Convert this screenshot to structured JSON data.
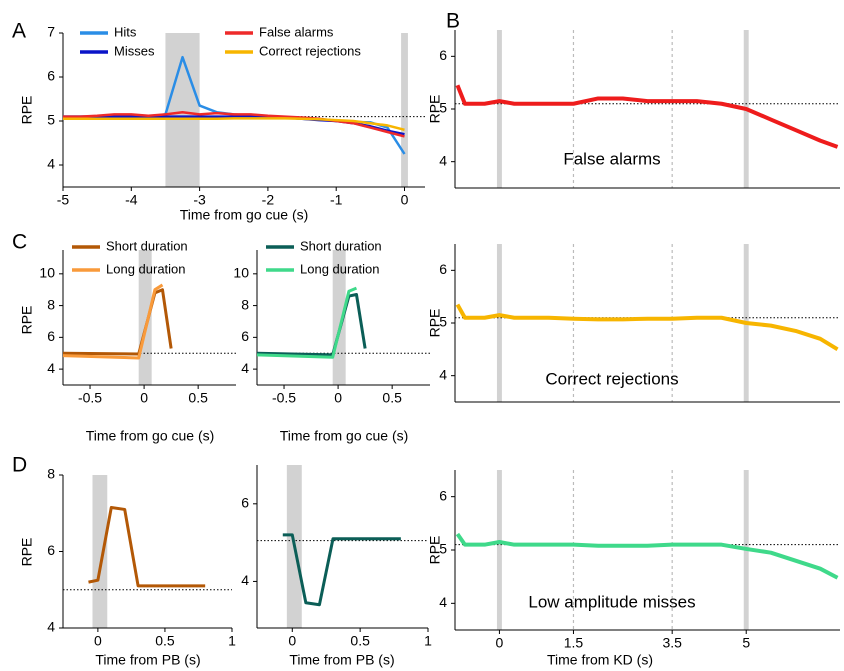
{
  "chart_data": [
    {
      "type": "line",
      "panel": "A",
      "xlabel": "Time from go cue (s)",
      "ylabel": "RPE",
      "x": [
        -5,
        -4.75,
        -4.5,
        -4.25,
        -4,
        -3.75,
        -3.5,
        -3.25,
        -3,
        -2.75,
        -2.5,
        -2.25,
        -2,
        -1.75,
        -1.5,
        -1.25,
        -1,
        -0.75,
        -0.5,
        -0.25,
        0
      ],
      "series": [
        {
          "name": "Hits",
          "color": "#2a8de6",
          "values": [
            5.1,
            5.1,
            5.1,
            5.1,
            5.1,
            5.1,
            5.15,
            6.45,
            5.35,
            5.2,
            5.15,
            5.12,
            5.1,
            5.08,
            5.05,
            5.03,
            5.0,
            4.98,
            4.97,
            4.85,
            4.25
          ]
        },
        {
          "name": "Misses",
          "color": "#0a14c8",
          "values": [
            5.1,
            5.1,
            5.1,
            5.1,
            5.1,
            5.1,
            5.1,
            5.1,
            5.1,
            5.1,
            5.1,
            5.1,
            5.1,
            5.08,
            5.05,
            5.02,
            5.0,
            4.95,
            4.88,
            4.78,
            4.7
          ]
        },
        {
          "name": "False alarms",
          "color": "#ee2a2a",
          "values": [
            5.1,
            5.1,
            5.12,
            5.15,
            5.15,
            5.12,
            5.15,
            5.2,
            5.15,
            5.18,
            5.15,
            5.15,
            5.12,
            5.1,
            5.08,
            5.05,
            5.0,
            4.95,
            4.85,
            4.75,
            4.65
          ]
        },
        {
          "name": "Correct rejections",
          "color": "#f7b500",
          "values": [
            5.05,
            5.05,
            5.05,
            5.05,
            5.05,
            5.05,
            5.05,
            5.05,
            5.05,
            5.05,
            5.06,
            5.06,
            5.06,
            5.06,
            5.05,
            5.04,
            5.02,
            5.0,
            4.95,
            4.9,
            4.8
          ]
        }
      ],
      "xlim": [
        -5,
        0.3
      ],
      "ylim": [
        3.5,
        7
      ],
      "xticks": [
        -5,
        -4,
        -3,
        -2,
        -1,
        0
      ],
      "yticks": [
        4,
        5,
        6,
        7
      ],
      "shaded": [
        [
          -3.5,
          -3
        ],
        [
          -0.05,
          0.05
        ]
      ],
      "reference_y": 5.1
    },
    {
      "type": "line",
      "panel": "B",
      "ylabel": "RPE",
      "annotation": "False alarms",
      "x": [
        -0.85,
        -0.7,
        -0.3,
        0,
        0.3,
        1,
        1.5,
        2,
        2.5,
        3,
        3.5,
        4,
        4.5,
        5,
        5.5,
        6,
        6.5,
        6.85
      ],
      "series": [
        {
          "color": "#ee1c1c",
          "values": [
            5.45,
            5.1,
            5.1,
            5.15,
            5.1,
            5.1,
            5.1,
            5.2,
            5.2,
            5.15,
            5.15,
            5.15,
            5.1,
            5.0,
            4.8,
            4.6,
            4.4,
            4.28
          ]
        }
      ],
      "xlim": [
        -0.9,
        6.9
      ],
      "ylim": [
        3.5,
        6.5
      ],
      "yticks": [
        4,
        5,
        6
      ],
      "shaded": [
        [
          -0.05,
          0.05
        ],
        [
          4.95,
          5.05
        ]
      ],
      "vlines": [
        1.5,
        3.5
      ],
      "reference_y": 5.1
    },
    {
      "type": "line",
      "ylabel": "RPE",
      "annotation": "Correct rejections",
      "x": [
        -0.85,
        -0.7,
        -0.3,
        0,
        0.3,
        1,
        1.5,
        2,
        2.5,
        3,
        3.5,
        4,
        4.5,
        5,
        5.5,
        6,
        6.5,
        6.85
      ],
      "series": [
        {
          "color": "#f7b500",
          "values": [
            5.35,
            5.1,
            5.1,
            5.15,
            5.1,
            5.1,
            5.08,
            5.07,
            5.07,
            5.08,
            5.08,
            5.1,
            5.1,
            5.0,
            4.95,
            4.85,
            4.7,
            4.5
          ]
        }
      ],
      "xlim": [
        -0.9,
        6.9
      ],
      "ylim": [
        3.5,
        6.5
      ],
      "yticks": [
        4,
        5,
        6
      ],
      "shaded": [
        [
          -0.05,
          0.05
        ],
        [
          4.95,
          5.05
        ]
      ],
      "vlines": [
        1.5,
        3.5
      ],
      "reference_y": 5.1
    },
    {
      "type": "line",
      "ylabel": "RPE",
      "xlabel": "Time from KD (s)",
      "annotation": "Low amplitude misses",
      "x": [
        -0.85,
        -0.7,
        -0.3,
        0,
        0.3,
        1,
        1.5,
        2,
        2.5,
        3,
        3.5,
        4,
        4.5,
        5,
        5.5,
        6,
        6.5,
        6.85
      ],
      "series": [
        {
          "color": "#3fd98a",
          "values": [
            5.3,
            5.1,
            5.1,
            5.15,
            5.1,
            5.1,
            5.1,
            5.08,
            5.08,
            5.08,
            5.1,
            5.1,
            5.1,
            5.02,
            4.95,
            4.8,
            4.65,
            4.48
          ]
        }
      ],
      "xlim": [
        -0.9,
        6.9
      ],
      "ylim": [
        3.5,
        6.5
      ],
      "xticks": [
        0,
        1.5,
        3.5,
        5
      ],
      "yticks": [
        4,
        5,
        6
      ],
      "shaded": [
        [
          -0.05,
          0.05
        ],
        [
          4.95,
          5.05
        ]
      ],
      "vlines": [
        1.5,
        3.5
      ],
      "reference_y": 5.1
    },
    {
      "type": "line",
      "panel": "C",
      "ylabel": "RPE",
      "xlabel": "Time from go cue (s)",
      "x": [
        -0.75,
        -0.05,
        0.1,
        0.17,
        0.25
      ],
      "series": [
        {
          "name": "Short duration",
          "color": "#b35806",
          "values": [
            5.0,
            4.95,
            8.8,
            9.0,
            5.3
          ]
        },
        {
          "name": "Long duration",
          "color": "#f99a3a",
          "values": [
            4.85,
            4.7,
            9.0,
            9.3,
            null
          ]
        }
      ],
      "xlim": [
        -0.75,
        0.85
      ],
      "ylim": [
        3,
        11.5
      ],
      "xticks": [
        -0.5,
        0,
        0.5
      ],
      "yticks": [
        4,
        6,
        8,
        10
      ],
      "shaded": [
        [
          -0.05,
          0.07
        ]
      ],
      "reference_y": 5.0
    },
    {
      "type": "line",
      "xlabel": "Time from go cue (s)",
      "x": [
        -0.75,
        -0.05,
        0.1,
        0.17,
        0.25
      ],
      "series": [
        {
          "name": "Short duration",
          "color": "#0b5e57",
          "values": [
            5.0,
            4.9,
            8.6,
            8.7,
            5.3
          ]
        },
        {
          "name": "Long duration",
          "color": "#3fd98a",
          "values": [
            4.9,
            4.75,
            8.9,
            9.1,
            null
          ]
        }
      ],
      "xlim": [
        -0.75,
        0.85
      ],
      "ylim": [
        3,
        11.5
      ],
      "xticks": [
        -0.5,
        0,
        0.5
      ],
      "yticks": [
        4,
        6,
        8,
        10
      ],
      "shaded": [
        [
          -0.05,
          0.07
        ]
      ],
      "reference_y": 5.0
    },
    {
      "type": "line",
      "panel": "D",
      "ylabel": "RPE",
      "xlabel": "Time from PB (s)",
      "x": [
        -0.07,
        0,
        0.1,
        0.2,
        0.3,
        0.8
      ],
      "series": [
        {
          "color": "#b35806",
          "values": [
            5.2,
            5.25,
            7.15,
            7.1,
            5.1,
            5.1
          ]
        }
      ],
      "xlim": [
        -0.26,
        1
      ],
      "ylim": [
        4,
        8
      ],
      "xticks": [
        0,
        0.5,
        1
      ],
      "yticks": [
        4,
        6,
        8
      ],
      "shaded": [
        [
          -0.04,
          0.07
        ]
      ],
      "reference_y": 5.0
    },
    {
      "type": "line",
      "xlabel": "Time from PB (s)",
      "x": [
        -0.07,
        0,
        0.1,
        0.2,
        0.3,
        0.8
      ],
      "series": [
        {
          "color": "#0b5e57",
          "values": [
            5.2,
            5.2,
            3.45,
            3.4,
            5.1,
            5.1
          ]
        }
      ],
      "xlim": [
        -0.26,
        1
      ],
      "ylim": [
        2.8,
        7
      ],
      "xticks": [
        0,
        0.5,
        1
      ],
      "yticks": [
        4,
        6
      ],
      "shaded": [
        [
          -0.04,
          0.07
        ]
      ],
      "reference_y": 5.05
    }
  ]
}
